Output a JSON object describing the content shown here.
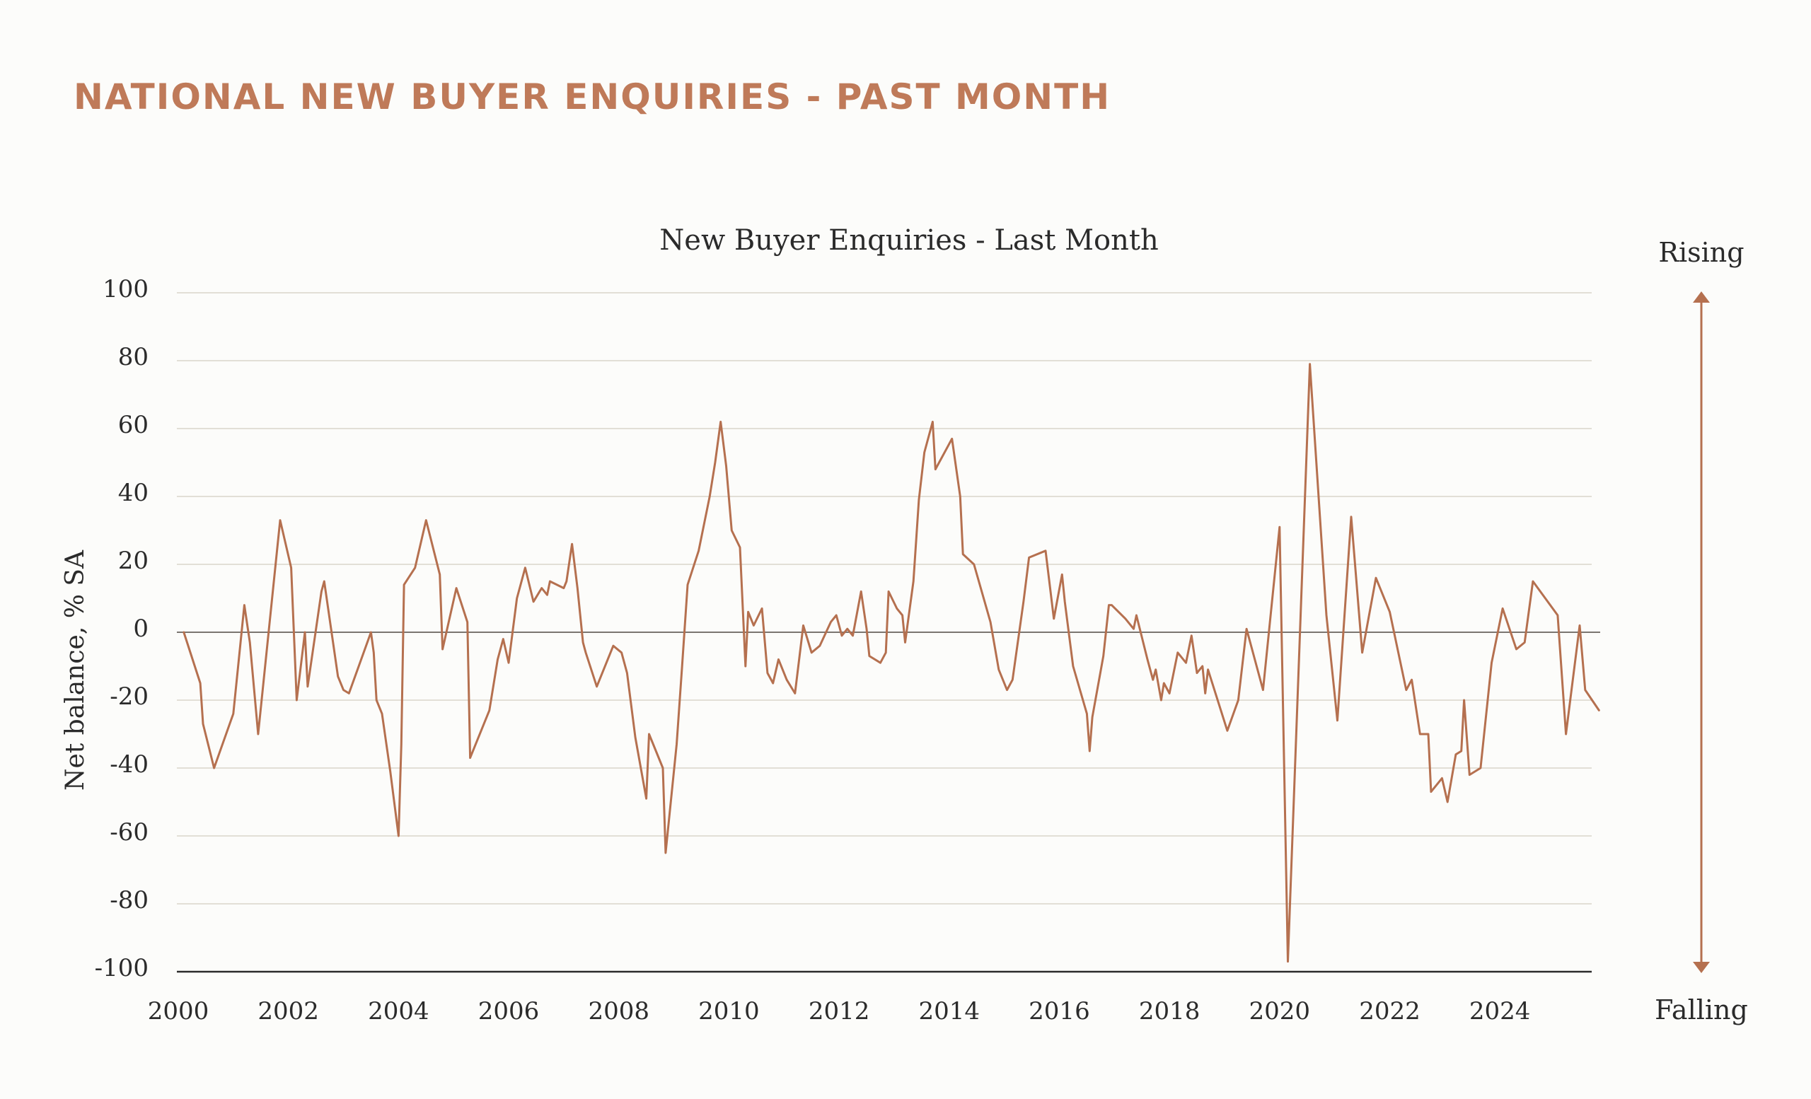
{
  "page": {
    "heading": "NATIONAL NEW BUYER ENQUIRIES - PAST MONTH"
  },
  "colors": {
    "heading": "#bf7a59",
    "line": "#b5704f",
    "grid": "#d9d5ca",
    "arrow": "#b5704f"
  },
  "indicator": {
    "top_label": "Rising",
    "bottom_label": "Falling",
    "icon": "double-headed-vertical-arrow"
  },
  "chart_data": {
    "type": "line",
    "title": "New Buyer Enquiries - Last Month",
    "xlabel": "",
    "ylabel": "Net balance, % SA",
    "xlim": [
      2000,
      2025
    ],
    "ylim": [
      -100,
      100
    ],
    "grid": true,
    "x_ticks": [
      "2000",
      "2002",
      "2004",
      "2006",
      "2008",
      "2010",
      "2012",
      "2014",
      "2016",
      "2018",
      "2020",
      "2022",
      "2024"
    ],
    "y_ticks": [
      "100",
      "80",
      "60",
      "40",
      "20",
      "0",
      "-20",
      "-40",
      "-60",
      "-80",
      "-100"
    ],
    "series": [
      {
        "x": [
          2000.1,
          2000.4,
          2000.45,
          2000.65,
          2001.0,
          2001.2,
          2001.3,
          2001.45,
          2001.85,
          2002.05,
          2002.15,
          2002.3,
          2002.35,
          2002.6,
          2002.65,
          2002.9,
          2003.0,
          2003.1,
          2003.5,
          2003.55,
          2003.6,
          2003.7,
          2003.85,
          2004.0,
          2004.05,
          2004.1,
          2004.3,
          2004.5,
          2004.75,
          2004.8,
          2005.05,
          2005.25,
          2005.3,
          2005.65,
          2005.8,
          2005.9,
          2006.0,
          2006.15,
          2006.3,
          2006.45,
          2006.6,
          2006.7,
          2006.75,
          2007.0,
          2007.05,
          2007.15,
          2007.25,
          2007.35,
          2007.4,
          2007.6,
          2007.9,
          2008.05,
          2008.15,
          2008.3,
          2008.5,
          2008.55,
          2008.8,
          2008.85,
          2009.05,
          2009.15,
          2009.25,
          2009.45,
          2009.65,
          2009.75,
          2009.85,
          2009.95,
          2010.05,
          2010.2,
          2010.3,
          2010.35,
          2010.45,
          2010.6,
          2010.7,
          2010.8,
          2010.9,
          2011.05,
          2011.2,
          2011.35,
          2011.5,
          2011.65,
          2011.85,
          2011.95,
          2012.05,
          2012.15,
          2012.25,
          2012.4,
          2012.5,
          2012.55,
          2012.75,
          2012.85,
          2012.9,
          2013.05,
          2013.15,
          2013.2,
          2013.35,
          2013.45,
          2013.55,
          2013.7,
          2013.75,
          2014.05,
          2014.2,
          2014.25,
          2014.45,
          2014.75,
          2014.9,
          2015.05,
          2015.15,
          2015.35,
          2015.45,
          2015.75,
          2015.9,
          2016.05,
          2016.1,
          2016.25,
          2016.5,
          2016.55,
          2016.6,
          2016.8,
          2016.9,
          2016.95,
          2017.2,
          2017.35,
          2017.4,
          2017.6,
          2017.7,
          2017.75,
          2017.85,
          2017.9,
          2018.0,
          2018.15,
          2018.3,
          2018.4,
          2018.5,
          2018.6,
          2018.65,
          2018.7,
          2019.05,
          2019.25,
          2019.4,
          2019.7,
          2020.0,
          2020.15,
          2020.55,
          2020.85,
          2021.05,
          2021.3,
          2021.5,
          2021.75,
          2022.0,
          2022.3,
          2022.4,
          2022.55,
          2022.7,
          2022.75,
          2022.95,
          2023.05,
          2023.2,
          2023.3,
          2023.35,
          2023.45,
          2023.65,
          2023.85,
          2024.05,
          2024.3,
          2024.45,
          2024.6,
          2025.05,
          2025.2,
          2025.45,
          2025.55,
          2025.8
        ],
        "y": [
          0,
          -15,
          -27,
          -40,
          -24,
          8,
          -3,
          -30,
          33,
          19,
          -20,
          0,
          -16,
          12,
          15,
          -13,
          -17,
          -18,
          0,
          -6,
          -20,
          -24,
          -41,
          -60,
          -33,
          14,
          19,
          33,
          17,
          -5,
          13,
          3,
          -37,
          -23,
          -8,
          -2,
          -9,
          10,
          19,
          9,
          13,
          11,
          15,
          13,
          15,
          26,
          13,
          -3,
          -6,
          -16,
          -4,
          -6,
          -12,
          -31,
          -49,
          -30,
          -40,
          -65,
          -33,
          -10,
          14,
          24,
          40,
          50,
          62,
          49,
          30,
          25,
          -10,
          6,
          2,
          7,
          -12,
          -15,
          -8,
          -14,
          -18,
          2,
          -6,
          -4,
          3,
          5,
          -1,
          1,
          -1,
          12,
          1,
          -7,
          -9,
          -6,
          12,
          7,
          5,
          -3,
          15,
          39,
          53,
          62,
          48,
          57,
          40,
          23,
          20,
          3,
          -11,
          -17,
          -14,
          9,
          22,
          24,
          4,
          17,
          9,
          -10,
          -24,
          -35,
          -25,
          -7,
          8,
          8,
          4,
          1,
          5,
          -8,
          -14,
          -11,
          -20,
          -15,
          -18,
          -6,
          -9,
          -1,
          -12,
          -10,
          -18,
          -11,
          -29,
          -20,
          1,
          -17,
          31,
          -97,
          79,
          5,
          -26,
          34,
          -6,
          16,
          6,
          -17,
          -14,
          -30,
          -30,
          -47,
          -43,
          -50,
          -36,
          -35,
          -20,
          -42,
          -40,
          -9,
          7,
          -5,
          -3,
          15,
          5,
          -30,
          2,
          -17,
          -23
        ]
      }
    ]
  }
}
